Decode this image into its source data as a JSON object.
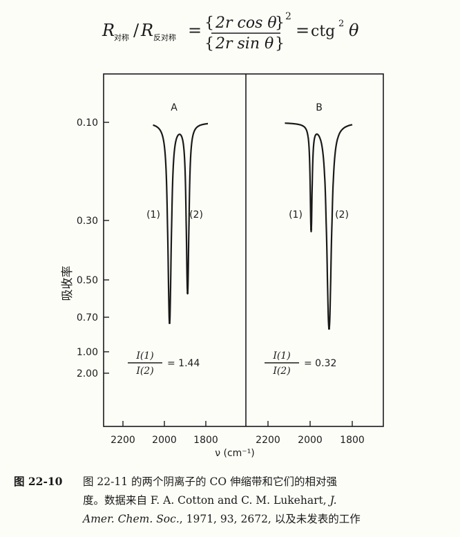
{
  "formula": {
    "left_sub_1": "对称",
    "left_sub_2": "反对称",
    "numerator": "2r cos θ",
    "denominator": "2r sin θ",
    "exponent": "2",
    "rhs": "ctg",
    "rhs_exponent": "2",
    "rhs_var": "θ"
  },
  "chart_data": {
    "type": "line",
    "ylabel": "吸收率",
    "xlabel": "ν (cm⁻¹)",
    "ytick_labels": [
      "0.10",
      "0.30",
      "0.50",
      "0.70",
      "1.00",
      "2.00"
    ],
    "panels": [
      {
        "label": "A",
        "xtick_labels": [
          "2200",
          "2000",
          "1800"
        ],
        "peak_labels": [
          "(1)",
          "(2)"
        ],
        "ratio": {
          "numerator": "I(1)",
          "denominator": "I(2)",
          "value": "1.44"
        },
        "peaks": [
          {
            "name": "(1)",
            "position": 1975,
            "absorbance": 0.75
          },
          {
            "name": "(2)",
            "position": 1888,
            "absorbance": 0.57
          }
        ],
        "dip_between": {
          "position": 1940,
          "absorbance": 0.14
        },
        "baseline": 0.1,
        "x_start": 2055,
        "x_end": 1790
      },
      {
        "label": "B",
        "xtick_labels": [
          "2200",
          "2000",
          "1800"
        ],
        "peak_labels": [
          "(1)",
          "(2)"
        ],
        "ratio": {
          "numerator": "I(1)",
          "denominator": "I(2)",
          "value": "0.32"
        },
        "peaks": [
          {
            "name": "(1)",
            "position": 1995,
            "absorbance": 0.33
          },
          {
            "name": "(2)",
            "position": 1910,
            "absorbance": 0.8
          }
        ],
        "dip_between": {
          "position": 1970,
          "absorbance": 0.12
        },
        "baseline": 0.1,
        "x_start": 2120,
        "x_end": 1800
      }
    ]
  },
  "caption": {
    "label": "图 22-10",
    "line1": "图 22-11 的两个阴离子的 CO 伸缩带和它们的相对强",
    "line2_a": "度。数据来自 F. A. Cotton and C. M. Lukehart, ",
    "line2_b": "J.",
    "line3_a": "Amer. Chem. Soc.",
    "line3_b": ", 1971, 93, 2672, 以及未发表的工作"
  }
}
